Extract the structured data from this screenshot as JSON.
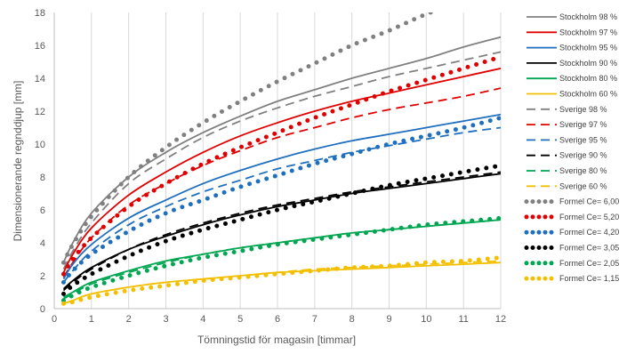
{
  "chart_data": {
    "type": "line",
    "xlabel": "Tömningstid för magasin [timmar]",
    "ylabel": "Dimensionerande regnddjup [mm]",
    "xlim": [
      0,
      12
    ],
    "ylim": [
      0,
      18
    ],
    "xticks": [
      0,
      1,
      2,
      3,
      4,
      5,
      6,
      7,
      8,
      9,
      10,
      11,
      12
    ],
    "yticks": [
      0,
      2,
      4,
      6,
      8,
      10,
      12,
      14,
      16,
      18
    ],
    "grid": "vertical",
    "legend_position": "right",
    "x": [
      0.25,
      0.5,
      1,
      2,
      3,
      4,
      5,
      6,
      7,
      8,
      9,
      10,
      11,
      12
    ],
    "series": [
      {
        "name": "Stockholm 98 %",
        "style": "solid",
        "color": "#808080",
        "values": [
          2.8,
          4.0,
          5.8,
          8.0,
          9.5,
          10.7,
          11.7,
          12.6,
          13.3,
          14.0,
          14.6,
          15.2,
          15.9,
          16.5
        ]
      },
      {
        "name": "Stockholm 97 %",
        "style": "solid",
        "color": "#e00000",
        "values": [
          2.2,
          3.3,
          4.9,
          6.9,
          8.3,
          9.5,
          10.5,
          11.3,
          12.0,
          12.6,
          13.1,
          13.6,
          14.1,
          14.6
        ]
      },
      {
        "name": "Stockholm 95 %",
        "style": "solid",
        "color": "#1f6fbf",
        "values": [
          1.8,
          2.7,
          3.9,
          5.5,
          6.6,
          7.6,
          8.4,
          9.1,
          9.7,
          10.2,
          10.6,
          11.0,
          11.4,
          11.8
        ]
      },
      {
        "name": "Stockholm 90 %",
        "style": "solid",
        "color": "#000000",
        "values": [
          1.2,
          1.7,
          2.5,
          3.6,
          4.4,
          5.1,
          5.7,
          6.2,
          6.6,
          7.0,
          7.3,
          7.6,
          7.9,
          8.2
        ]
      },
      {
        "name": "Stockholm 80 %",
        "style": "solid",
        "color": "#00a651",
        "values": [
          0.7,
          1.0,
          1.6,
          2.3,
          2.9,
          3.3,
          3.7,
          4.0,
          4.3,
          4.6,
          4.8,
          5.0,
          5.2,
          5.4
        ]
      },
      {
        "name": "Stockholm 60 %",
        "style": "solid",
        "color": "#f2c000",
        "values": [
          0.3,
          0.5,
          0.9,
          1.3,
          1.6,
          1.8,
          2.0,
          2.2,
          2.3,
          2.4,
          2.5,
          2.6,
          2.7,
          2.8
        ]
      },
      {
        "name": "Sverige 98 %",
        "style": "dashed",
        "color": "#808080",
        "values": [
          2.4,
          3.5,
          5.2,
          7.6,
          9.1,
          10.4,
          11.4,
          12.2,
          12.9,
          13.5,
          14.1,
          14.6,
          15.1,
          15.6
        ]
      },
      {
        "name": "Sverige 97 %",
        "style": "dashed",
        "color": "#e00000",
        "values": [
          1.9,
          2.8,
          4.3,
          6.3,
          7.6,
          8.7,
          9.6,
          10.4,
          11.0,
          11.6,
          12.1,
          12.5,
          12.9,
          13.4
        ]
      },
      {
        "name": "Sverige 95 %",
        "style": "dashed",
        "color": "#1f6fbf",
        "values": [
          1.6,
          2.3,
          3.5,
          5.1,
          6.2,
          7.1,
          7.8,
          8.5,
          9.0,
          9.5,
          9.9,
          10.3,
          10.7,
          11.0
        ]
      },
      {
        "name": "Sverige 90 %",
        "style": "dashed",
        "color": "#000000",
        "values": [
          1.1,
          1.6,
          2.4,
          3.6,
          4.5,
          5.2,
          5.8,
          6.3,
          6.7,
          7.1,
          7.4,
          7.7,
          8.0,
          8.3
        ]
      },
      {
        "name": "Sverige 80 %",
        "style": "dashed",
        "color": "#00a651",
        "values": [
          0.6,
          0.9,
          1.5,
          2.2,
          2.8,
          3.3,
          3.7,
          4.0,
          4.3,
          4.6,
          4.8,
          5.0,
          5.2,
          5.4
        ]
      },
      {
        "name": "Sverige 60 %",
        "style": "dashed",
        "color": "#f2c000",
        "values": [
          0.3,
          0.5,
          0.9,
          1.3,
          1.6,
          1.8,
          2.0,
          2.2,
          2.4,
          2.5,
          2.6,
          2.7,
          2.8,
          2.9
        ]
      },
      {
        "name": "Formel Ce= 6,00",
        "style": "dotted",
        "color": "#808080",
        "values": [
          2.8,
          3.9,
          5.6,
          8.0,
          9.8,
          11.3,
          12.6,
          13.8,
          14.9,
          16.0,
          16.9,
          17.9,
          18.7,
          19.6
        ]
      },
      {
        "name": "Formel Ce= 5,20",
        "style": "dotted",
        "color": "#e00000",
        "values": [
          2.1,
          3.0,
          4.3,
          6.2,
          7.6,
          8.8,
          9.8,
          10.7,
          11.6,
          12.4,
          13.2,
          13.9,
          14.6,
          15.3
        ]
      },
      {
        "name": "Formel Ce= 4,20",
        "style": "dotted",
        "color": "#1f6fbf",
        "values": [
          1.6,
          2.3,
          3.3,
          4.7,
          5.8,
          6.6,
          7.4,
          8.1,
          8.8,
          9.4,
          10.0,
          10.5,
          11.0,
          11.6
        ]
      },
      {
        "name": "Formel Ce= 3,05",
        "style": "dotted",
        "color": "#000000",
        "values": [
          0.9,
          1.4,
          2.1,
          3.2,
          4.1,
          4.8,
          5.4,
          6.0,
          6.5,
          7.0,
          7.5,
          7.9,
          8.3,
          8.7
        ]
      },
      {
        "name": "Formel Ce= 2,05",
        "style": "dotted",
        "color": "#00a651",
        "values": [
          0.5,
          0.8,
          1.3,
          2.0,
          2.6,
          3.1,
          3.5,
          3.9,
          4.2,
          4.5,
          4.8,
          5.1,
          5.3,
          5.5
        ]
      },
      {
        "name": "Formel Ce= 1,15",
        "style": "dotted",
        "color": "#f2c000",
        "values": [
          0.3,
          0.4,
          0.7,
          1.1,
          1.4,
          1.7,
          1.9,
          2.1,
          2.3,
          2.5,
          2.6,
          2.8,
          2.9,
          3.1
        ]
      }
    ]
  }
}
